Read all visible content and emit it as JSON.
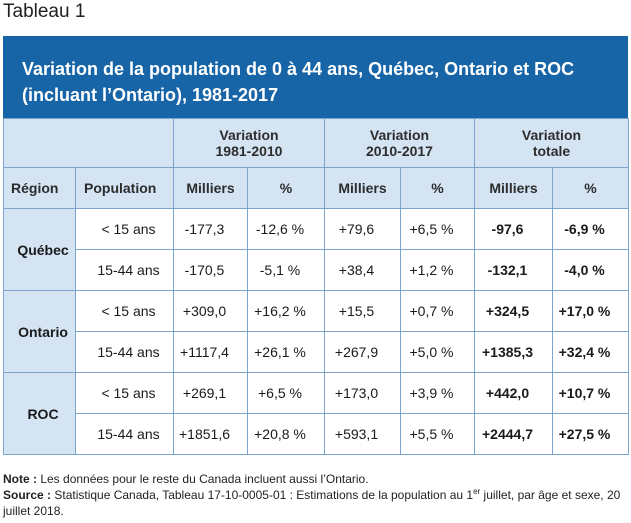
{
  "page_label": "Tableau 1",
  "title": "Variation de la population de 0 à 44 ans, Québec, Ontario et ROC (incluant l’Ontario), 1981-2017",
  "group_headers": {
    "g1": "Variation 1981-2010",
    "g2": "Variation 2010-2017",
    "g3": "Variation totale"
  },
  "sub_headers": {
    "region": "Région",
    "population": "Population",
    "milliers": "Milliers",
    "pct": "%"
  },
  "rows": [
    {
      "region": "Québec",
      "population": "< 15 ans",
      "v1m": "-177,3",
      "v1p": "-12,6 %",
      "v2m": "+79,6",
      "v2p": "+6,5 %",
      "vtm": "-97,6",
      "vtp": "-6,9 %"
    },
    {
      "population": "15-44 ans",
      "v1m": "-170,5",
      "v1p": "-5,1 %",
      "v2m": "+38,4",
      "v2p": "+1,2 %",
      "vtm": "-132,1",
      "vtp": "-4,0 %"
    },
    {
      "region": "Ontario",
      "population": "< 15 ans",
      "v1m": "+309,0",
      "v1p": "+16,2 %",
      "v2m": "+15,5",
      "v2p": "+0,7 %",
      "vtm": "+324,5",
      "vtp": "+17,0 %"
    },
    {
      "population": "15-44 ans",
      "v1m": "+1117,4",
      "v1p": "+26,1 %",
      "v2m": "+267,9",
      "v2p": "+5,0 %",
      "vtm": "+1385,3",
      "vtp": "+32,4 %"
    },
    {
      "region": "ROC",
      "population": "< 15 ans",
      "v1m": "+269,1",
      "v1p": "+6,5 %",
      "v2m": "+173,0",
      "v2p": "+3,9 %",
      "vtm": "+442,0",
      "vtp": "+10,7 %"
    },
    {
      "population": "15-44 ans",
      "v1m": "+1851,6",
      "v1p": "+20,8 %",
      "v2m": "+593,1",
      "v2p": "+5,5 %",
      "vtm": "+2444,7",
      "vtp": "+27,5 %"
    }
  ],
  "notes": {
    "note_label": "Note :",
    "note_text": " Les données pour le reste du Canada incluent aussi l’Ontario.",
    "source_label": "Source :",
    "source_text_a": " Statistique Canada, Tableau 17-10-0005-01 : Estimations de la population au 1",
    "source_sup": "er",
    "source_text_b": " juillet, par âge et sexe, 20 juillet 2018."
  },
  "colors": {
    "title_bg": "#1764a7",
    "header_bg": "#d4e4f3",
    "border": "#7da5cc"
  }
}
